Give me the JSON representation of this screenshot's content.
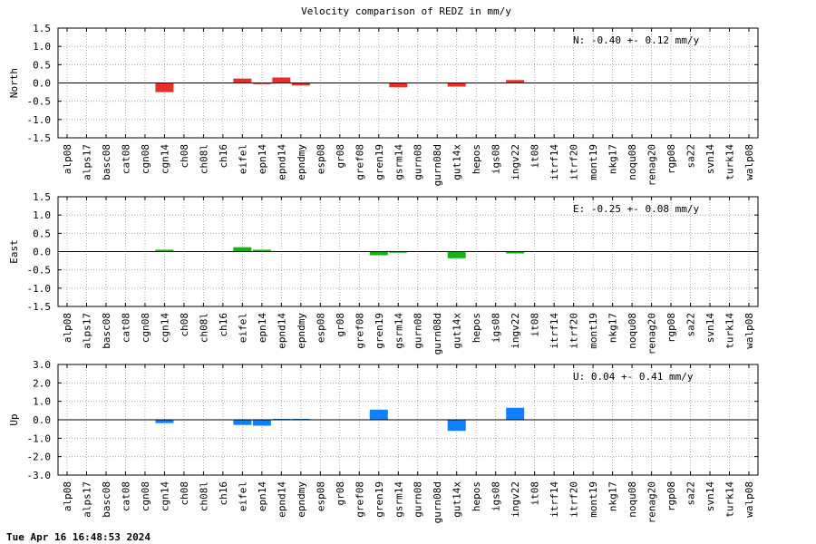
{
  "title": "Velocity comparison of REDZ in mm/y",
  "footer": "Tue Apr 16 16:48:53 2024",
  "colors": {
    "north": "#e8302a",
    "east": "#10b510",
    "up": "#0f80ff"
  },
  "chart_data": [
    {
      "type": "bar",
      "ylabel": "North",
      "ylim": [
        -1.5,
        1.5
      ],
      "yticks": [
        "1.5",
        "1.0",
        "0.5",
        "0.0",
        "-0.5",
        "-1.0",
        "-1.5"
      ],
      "grid": true,
      "annotation": "N:  -0.40 +-  0.12 mm/y",
      "categories": [
        "alp08",
        "alps17",
        "basc08",
        "cat08",
        "cgn08",
        "cgn14",
        "ch08",
        "ch08l",
        "ch16",
        "eifel",
        "epn14",
        "epnd14",
        "epndmy",
        "esp08",
        "gr08",
        "gref08",
        "gren19",
        "gsrm14",
        "gurn08",
        "gurn08d",
        "gut14x",
        "hepos",
        "igs08",
        "ingv22",
        "it08",
        "itrf14",
        "itrf20",
        "mont19",
        "nkg17",
        "noqu08",
        "renag20",
        "rgp08",
        "sa22",
        "svn14",
        "turk14",
        "walp08"
      ],
      "series": [
        {
          "values": [
            0,
            0,
            0,
            0,
            0,
            -0.25,
            0,
            0,
            0,
            0.12,
            -0.03,
            0.15,
            -0.07,
            0,
            0,
            0,
            0,
            -0.12,
            0,
            0,
            -0.1,
            0,
            0,
            0.08,
            0,
            0,
            0,
            0,
            0,
            0,
            0,
            0,
            0,
            0,
            0,
            0
          ]
        }
      ]
    },
    {
      "type": "bar",
      "ylabel": "East",
      "ylim": [
        -1.5,
        1.5
      ],
      "yticks": [
        "1.5",
        "1.0",
        "0.5",
        "0.0",
        "-0.5",
        "-1.0",
        "-1.5"
      ],
      "grid": true,
      "annotation": "E:  -0.25 +-  0.08 mm/y",
      "categories": [
        "alp08",
        "alps17",
        "basc08",
        "cat08",
        "cgn08",
        "cgn14",
        "ch08",
        "ch08l",
        "ch16",
        "eifel",
        "epn14",
        "epnd14",
        "epndmy",
        "esp08",
        "gr08",
        "gref08",
        "gren19",
        "gsrm14",
        "gurn08",
        "gurn08d",
        "gut14x",
        "hepos",
        "igs08",
        "ingv22",
        "it08",
        "itrf14",
        "itrf20",
        "mont19",
        "nkg17",
        "noqu08",
        "renag20",
        "rgp08",
        "sa22",
        "svn14",
        "turk14",
        "walp08"
      ],
      "series": [
        {
          "values": [
            0,
            0,
            0,
            0,
            0,
            0.05,
            0,
            0,
            0,
            0.12,
            0.05,
            0,
            0,
            0,
            0,
            0,
            -0.1,
            -0.03,
            0,
            0,
            -0.18,
            0,
            0,
            -0.05,
            0,
            0,
            0,
            0,
            0,
            0,
            0,
            0,
            0,
            0,
            0,
            0
          ]
        }
      ]
    },
    {
      "type": "bar",
      "ylabel": "Up",
      "ylim": [
        -3.0,
        3.0
      ],
      "yticks": [
        "3.0",
        "2.0",
        "1.0",
        "0.0",
        "-1.0",
        "-2.0",
        "-3.0"
      ],
      "grid": true,
      "annotation": "U:   0.04 +-  0.41 mm/y",
      "categories": [
        "alp08",
        "alps17",
        "basc08",
        "cat08",
        "cgn08",
        "cgn14",
        "ch08",
        "ch08l",
        "ch16",
        "eifel",
        "epn14",
        "epnd14",
        "epndmy",
        "esp08",
        "gr08",
        "gref08",
        "gren19",
        "gsrm14",
        "gurn08",
        "gurn08d",
        "gut14x",
        "hepos",
        "igs08",
        "ingv22",
        "it08",
        "itrf14",
        "itrf20",
        "mont19",
        "nkg17",
        "noqu08",
        "renag20",
        "rgp08",
        "sa22",
        "svn14",
        "turk14",
        "walp08"
      ],
      "series": [
        {
          "values": [
            0,
            0,
            0,
            0,
            0,
            -0.18,
            0,
            0,
            0,
            -0.28,
            -0.32,
            0.05,
            0.05,
            0,
            0,
            0,
            0.55,
            0,
            0,
            0,
            -0.6,
            0,
            0,
            0.65,
            0,
            0,
            0,
            0,
            0,
            0,
            0,
            0,
            0,
            0,
            0,
            0
          ]
        }
      ]
    }
  ]
}
